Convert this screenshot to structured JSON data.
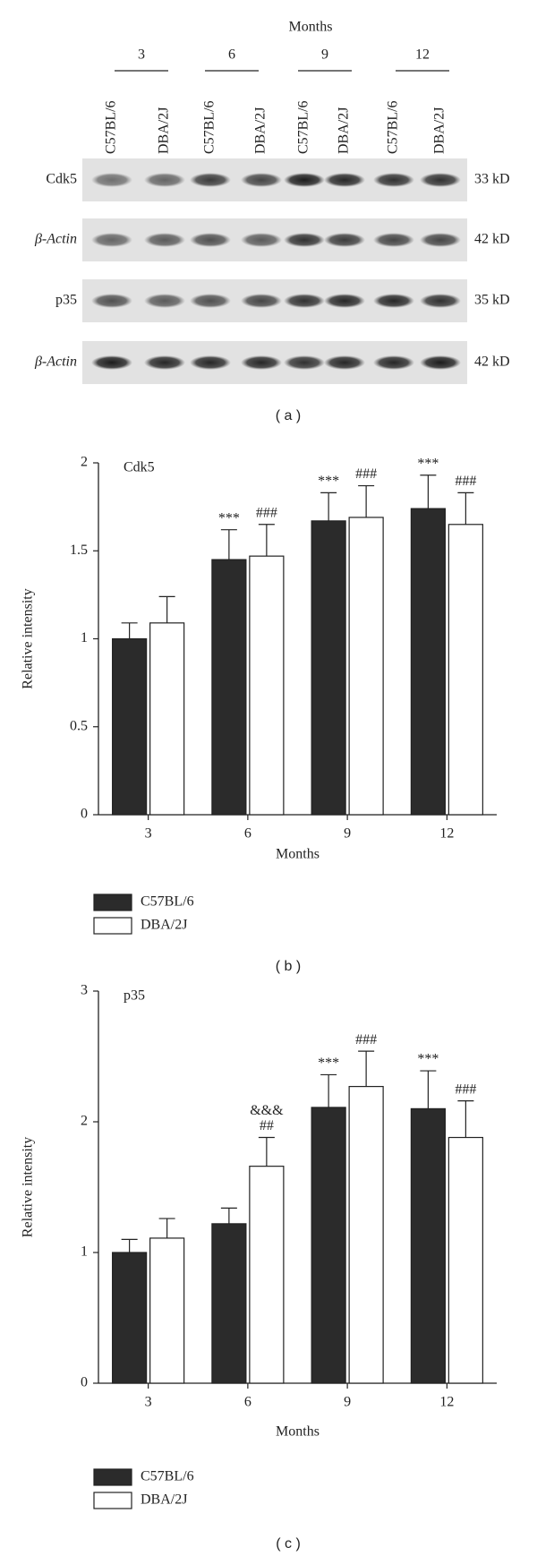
{
  "blot": {
    "header": "Months",
    "groups": [
      "3",
      "6",
      "9",
      "12"
    ],
    "lanes": [
      "C57BL/6",
      "DBA/2J",
      "C57BL/6",
      "DBA/2J",
      "C57BL/6",
      "DBA/2J",
      "C57BL/6",
      "DBA/2J"
    ],
    "rows": [
      {
        "label": "Cdk5",
        "size": "33 kD"
      },
      {
        "label": "β-Actin",
        "size": "42 kD"
      },
      {
        "label": "p35",
        "size": "35 kD"
      },
      {
        "label": "β-Actin",
        "size": "42 kD"
      }
    ],
    "panel": "( a )"
  },
  "chart_data": [
    {
      "type": "bar",
      "title": "Cdk5",
      "panel": "( b )",
      "x_label": "Months",
      "y_label": "Relative intensity",
      "categories": [
        "3",
        "6",
        "9",
        "12"
      ],
      "ylim": [
        0,
        2
      ],
      "yticks": [
        0,
        0.5,
        1,
        1.5,
        2
      ],
      "series": [
        {
          "name": "C57BL/6",
          "color": "#2b2b2b",
          "values": [
            1.0,
            1.45,
            1.67,
            1.74
          ],
          "errors": [
            0.09,
            0.17,
            0.16,
            0.19
          ],
          "annotations": [
            null,
            [
              "***"
            ],
            [
              "***"
            ],
            [
              "***"
            ]
          ]
        },
        {
          "name": "DBA/2J",
          "color": "#ffffff",
          "values": [
            1.09,
            1.47,
            1.69,
            1.65
          ],
          "errors": [
            0.15,
            0.18,
            0.18,
            0.18
          ],
          "annotations": [
            null,
            [
              "###"
            ],
            [
              "###"
            ],
            [
              "###"
            ]
          ]
        }
      ]
    },
    {
      "type": "bar",
      "title": "p35",
      "panel": "( c )",
      "x_label": "Months",
      "y_label": "Relative intensity",
      "categories": [
        "3",
        "6",
        "9",
        "12"
      ],
      "ylim": [
        0,
        3
      ],
      "yticks": [
        0,
        1,
        2,
        3
      ],
      "series": [
        {
          "name": "C57BL/6",
          "color": "#2b2b2b",
          "values": [
            1.0,
            1.22,
            2.11,
            2.1
          ],
          "errors": [
            0.1,
            0.12,
            0.25,
            0.29
          ],
          "annotations": [
            null,
            null,
            [
              "***"
            ],
            [
              "***"
            ]
          ]
        },
        {
          "name": "DBA/2J",
          "color": "#ffffff",
          "values": [
            1.11,
            1.66,
            2.27,
            1.88
          ],
          "errors": [
            0.15,
            0.22,
            0.27,
            0.28
          ],
          "annotations": [
            null,
            [
              "&&&",
              "##"
            ],
            [
              "###"
            ],
            [
              "###"
            ]
          ]
        }
      ]
    }
  ]
}
